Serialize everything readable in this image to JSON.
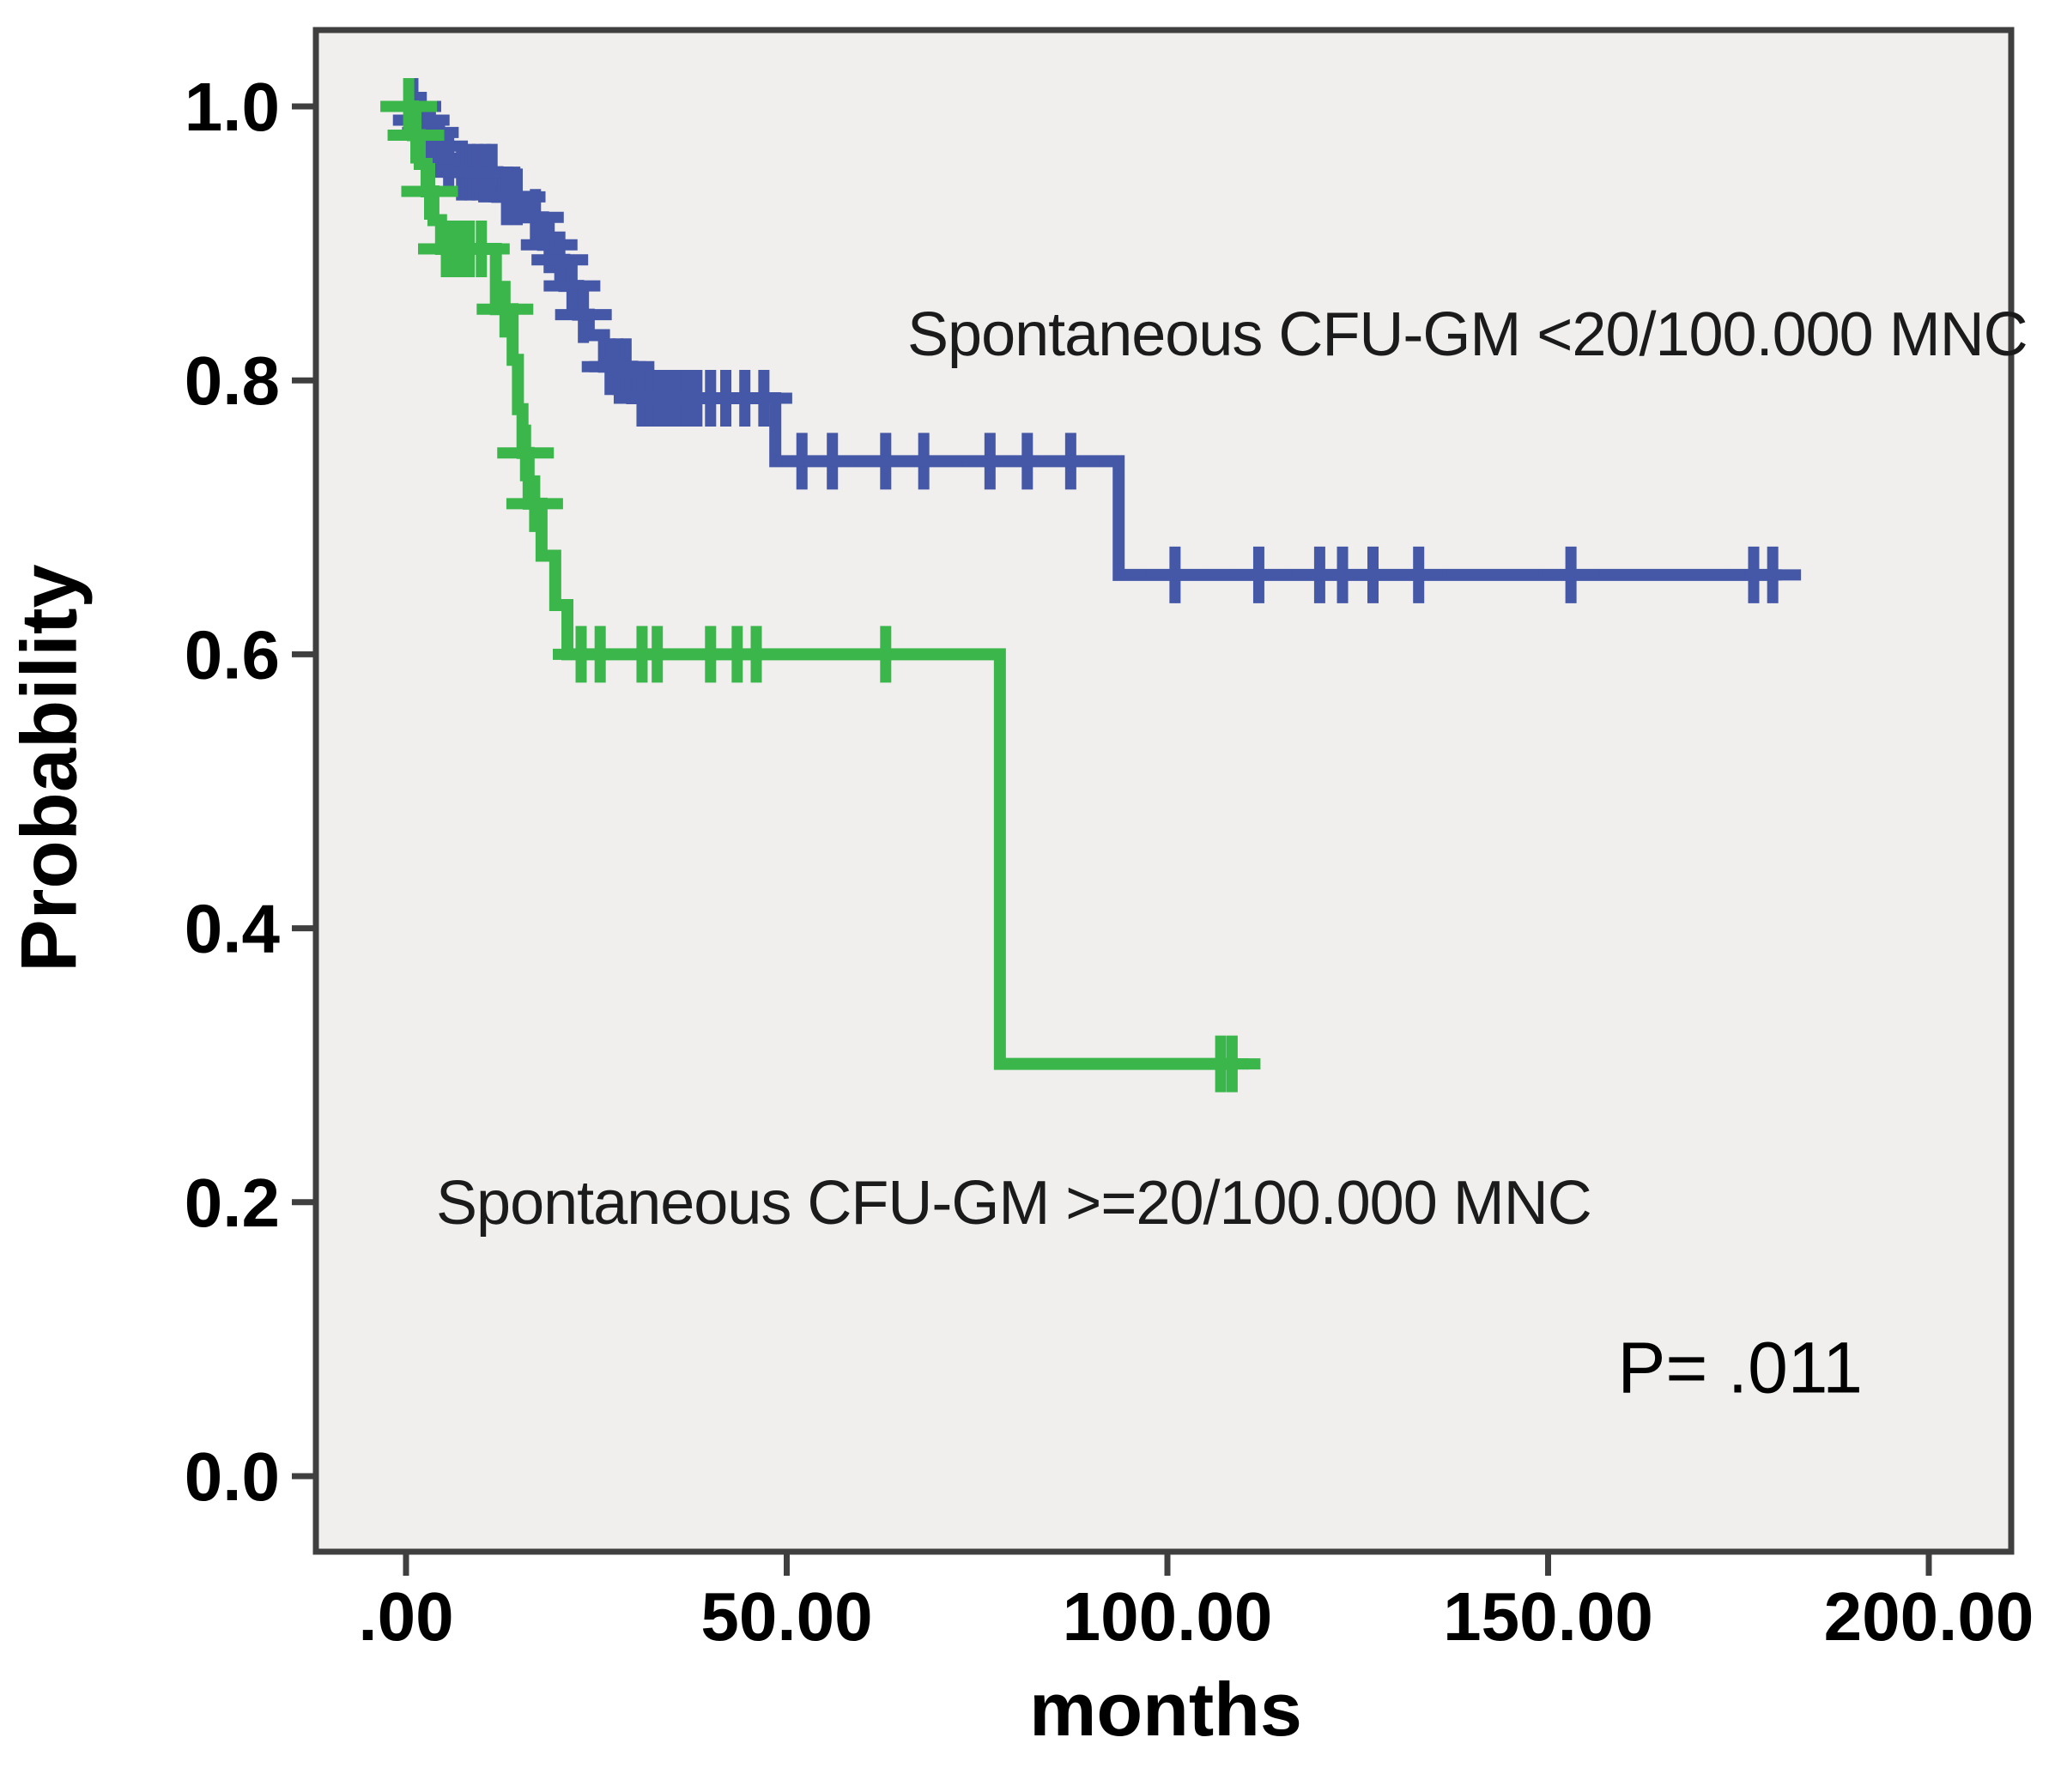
{
  "figure": {
    "y_axis_title": "Probability",
    "x_axis_title": "months",
    "p_value": "P= .011",
    "background_color": "#ffffff",
    "plot_background_color": "#f0efed",
    "border_color": "#3f3f3f",
    "tick_label_color": "#000000"
  },
  "chart_data": {
    "type": "line",
    "subtype": "kaplan-meier-step-curves",
    "title": "",
    "xlabel": "months",
    "ylabel": "Probability",
    "xlim": [
      0,
      200
    ],
    "ylim": [
      0.0,
      1.0
    ],
    "grid": false,
    "legend_position": "labels-annotated-inside-plot",
    "x_ticks": {
      "labels": [
        ".00",
        "50.00",
        "100.00",
        "150.00",
        "200.00"
      ],
      "values": [
        0,
        50,
        100,
        150,
        200
      ]
    },
    "y_ticks": {
      "labels": [
        "0.0",
        "0.2",
        "0.4",
        "0.6",
        "0.8",
        "1.0"
      ],
      "values": [
        0.0,
        0.2,
        0.4,
        0.6,
        0.8,
        1.0
      ]
    },
    "annotations": [
      {
        "name": "p-value",
        "text": "P= .011"
      }
    ],
    "series": [
      {
        "name": "low-cfu-gm",
        "label": "Spontaneous CFU-GM <20/100.000 MNC",
        "color": "#4557a7",
        "steps": [
          [
            0,
            1.0
          ],
          [
            1.5,
            0.99
          ],
          [
            2.6,
            0.981
          ],
          [
            3.8,
            0.971
          ],
          [
            5,
            0.962
          ],
          [
            6.3,
            0.952
          ],
          [
            12,
            0.934
          ],
          [
            16,
            0.919
          ],
          [
            18,
            0.899
          ],
          [
            19.5,
            0.888
          ],
          [
            20.8,
            0.869
          ],
          [
            22.6,
            0.848
          ],
          [
            24,
            0.833
          ],
          [
            26,
            0.81
          ],
          [
            29.7,
            0.787
          ],
          [
            48.5,
            0.741
          ],
          [
            93.6,
            0.658
          ]
        ],
        "end_x": 179.5,
        "censors": [
          [
            0.4,
            1.0
          ],
          [
            0.9,
            1.0
          ],
          [
            2,
            0.99
          ],
          [
            3.2,
            0.981
          ],
          [
            4.4,
            0.971
          ],
          [
            5.6,
            0.962
          ],
          [
            7.3,
            0.952
          ],
          [
            8.4,
            0.952
          ],
          [
            9.4,
            0.952
          ],
          [
            10.4,
            0.952
          ],
          [
            11.3,
            0.952
          ],
          [
            13.2,
            0.934
          ],
          [
            14.6,
            0.934
          ],
          [
            17,
            0.919
          ],
          [
            18.8,
            0.899
          ],
          [
            20.2,
            0.888
          ],
          [
            21.8,
            0.869
          ],
          [
            23.3,
            0.848
          ],
          [
            26.8,
            0.81
          ],
          [
            27.8,
            0.81
          ],
          [
            28.9,
            0.81
          ],
          [
            31,
            0.787
          ],
          [
            32.1,
            0.787
          ],
          [
            33.2,
            0.787
          ],
          [
            34.4,
            0.787
          ],
          [
            35.6,
            0.787
          ],
          [
            36.8,
            0.787
          ],
          [
            38.2,
            0.787
          ],
          [
            40,
            0.787
          ],
          [
            42,
            0.787
          ],
          [
            44.5,
            0.787
          ],
          [
            47,
            0.787
          ],
          [
            52,
            0.741
          ],
          [
            56,
            0.741
          ],
          [
            63,
            0.741
          ],
          [
            68,
            0.741
          ],
          [
            76.7,
            0.741
          ],
          [
            81.6,
            0.741
          ],
          [
            87.3,
            0.741
          ],
          [
            101,
            0.658
          ],
          [
            112,
            0.658
          ],
          [
            120,
            0.658
          ],
          [
            123,
            0.658
          ],
          [
            127,
            0.658
          ],
          [
            133,
            0.658
          ],
          [
            153,
            0.658
          ],
          [
            177,
            0.658
          ],
          [
            179.5,
            0.658
          ]
        ]
      },
      {
        "name": "high-cfu-gm",
        "label": "Spontaneous CFU-GM >=20/100.000 MNC",
        "color": "#3bb64b",
        "steps": [
          [
            0,
            1.0
          ],
          [
            0.9,
            0.979
          ],
          [
            1.8,
            0.958
          ],
          [
            2.7,
            0.938
          ],
          [
            3.6,
            0.917
          ],
          [
            4.6,
            0.896
          ],
          [
            11.8,
            0.852
          ],
          [
            14,
            0.815
          ],
          [
            14.7,
            0.779
          ],
          [
            15.3,
            0.747
          ],
          [
            16.1,
            0.71
          ],
          [
            17.8,
            0.672
          ],
          [
            19.6,
            0.636
          ],
          [
            21.2,
            0.6
          ],
          [
            78,
            0.301
          ]
        ],
        "end_x": 108.5,
        "censors": [
          [
            0.35,
            1.0
          ],
          [
            1.3,
            0.979
          ],
          [
            3.1,
            0.938
          ],
          [
            5.3,
            0.896
          ],
          [
            6.3,
            0.896
          ],
          [
            7.3,
            0.896
          ],
          [
            8.3,
            0.896
          ],
          [
            9.9,
            0.896
          ],
          [
            13,
            0.852
          ],
          [
            15.7,
            0.747
          ],
          [
            16.9,
            0.71
          ],
          [
            23,
            0.6
          ],
          [
            25.5,
            0.6
          ],
          [
            31,
            0.6
          ],
          [
            33,
            0.6
          ],
          [
            40,
            0.6
          ],
          [
            43.5,
            0.6
          ],
          [
            46,
            0.6
          ],
          [
            63,
            0.6
          ],
          [
            107,
            0.301
          ],
          [
            108.5,
            0.301
          ]
        ]
      }
    ]
  }
}
